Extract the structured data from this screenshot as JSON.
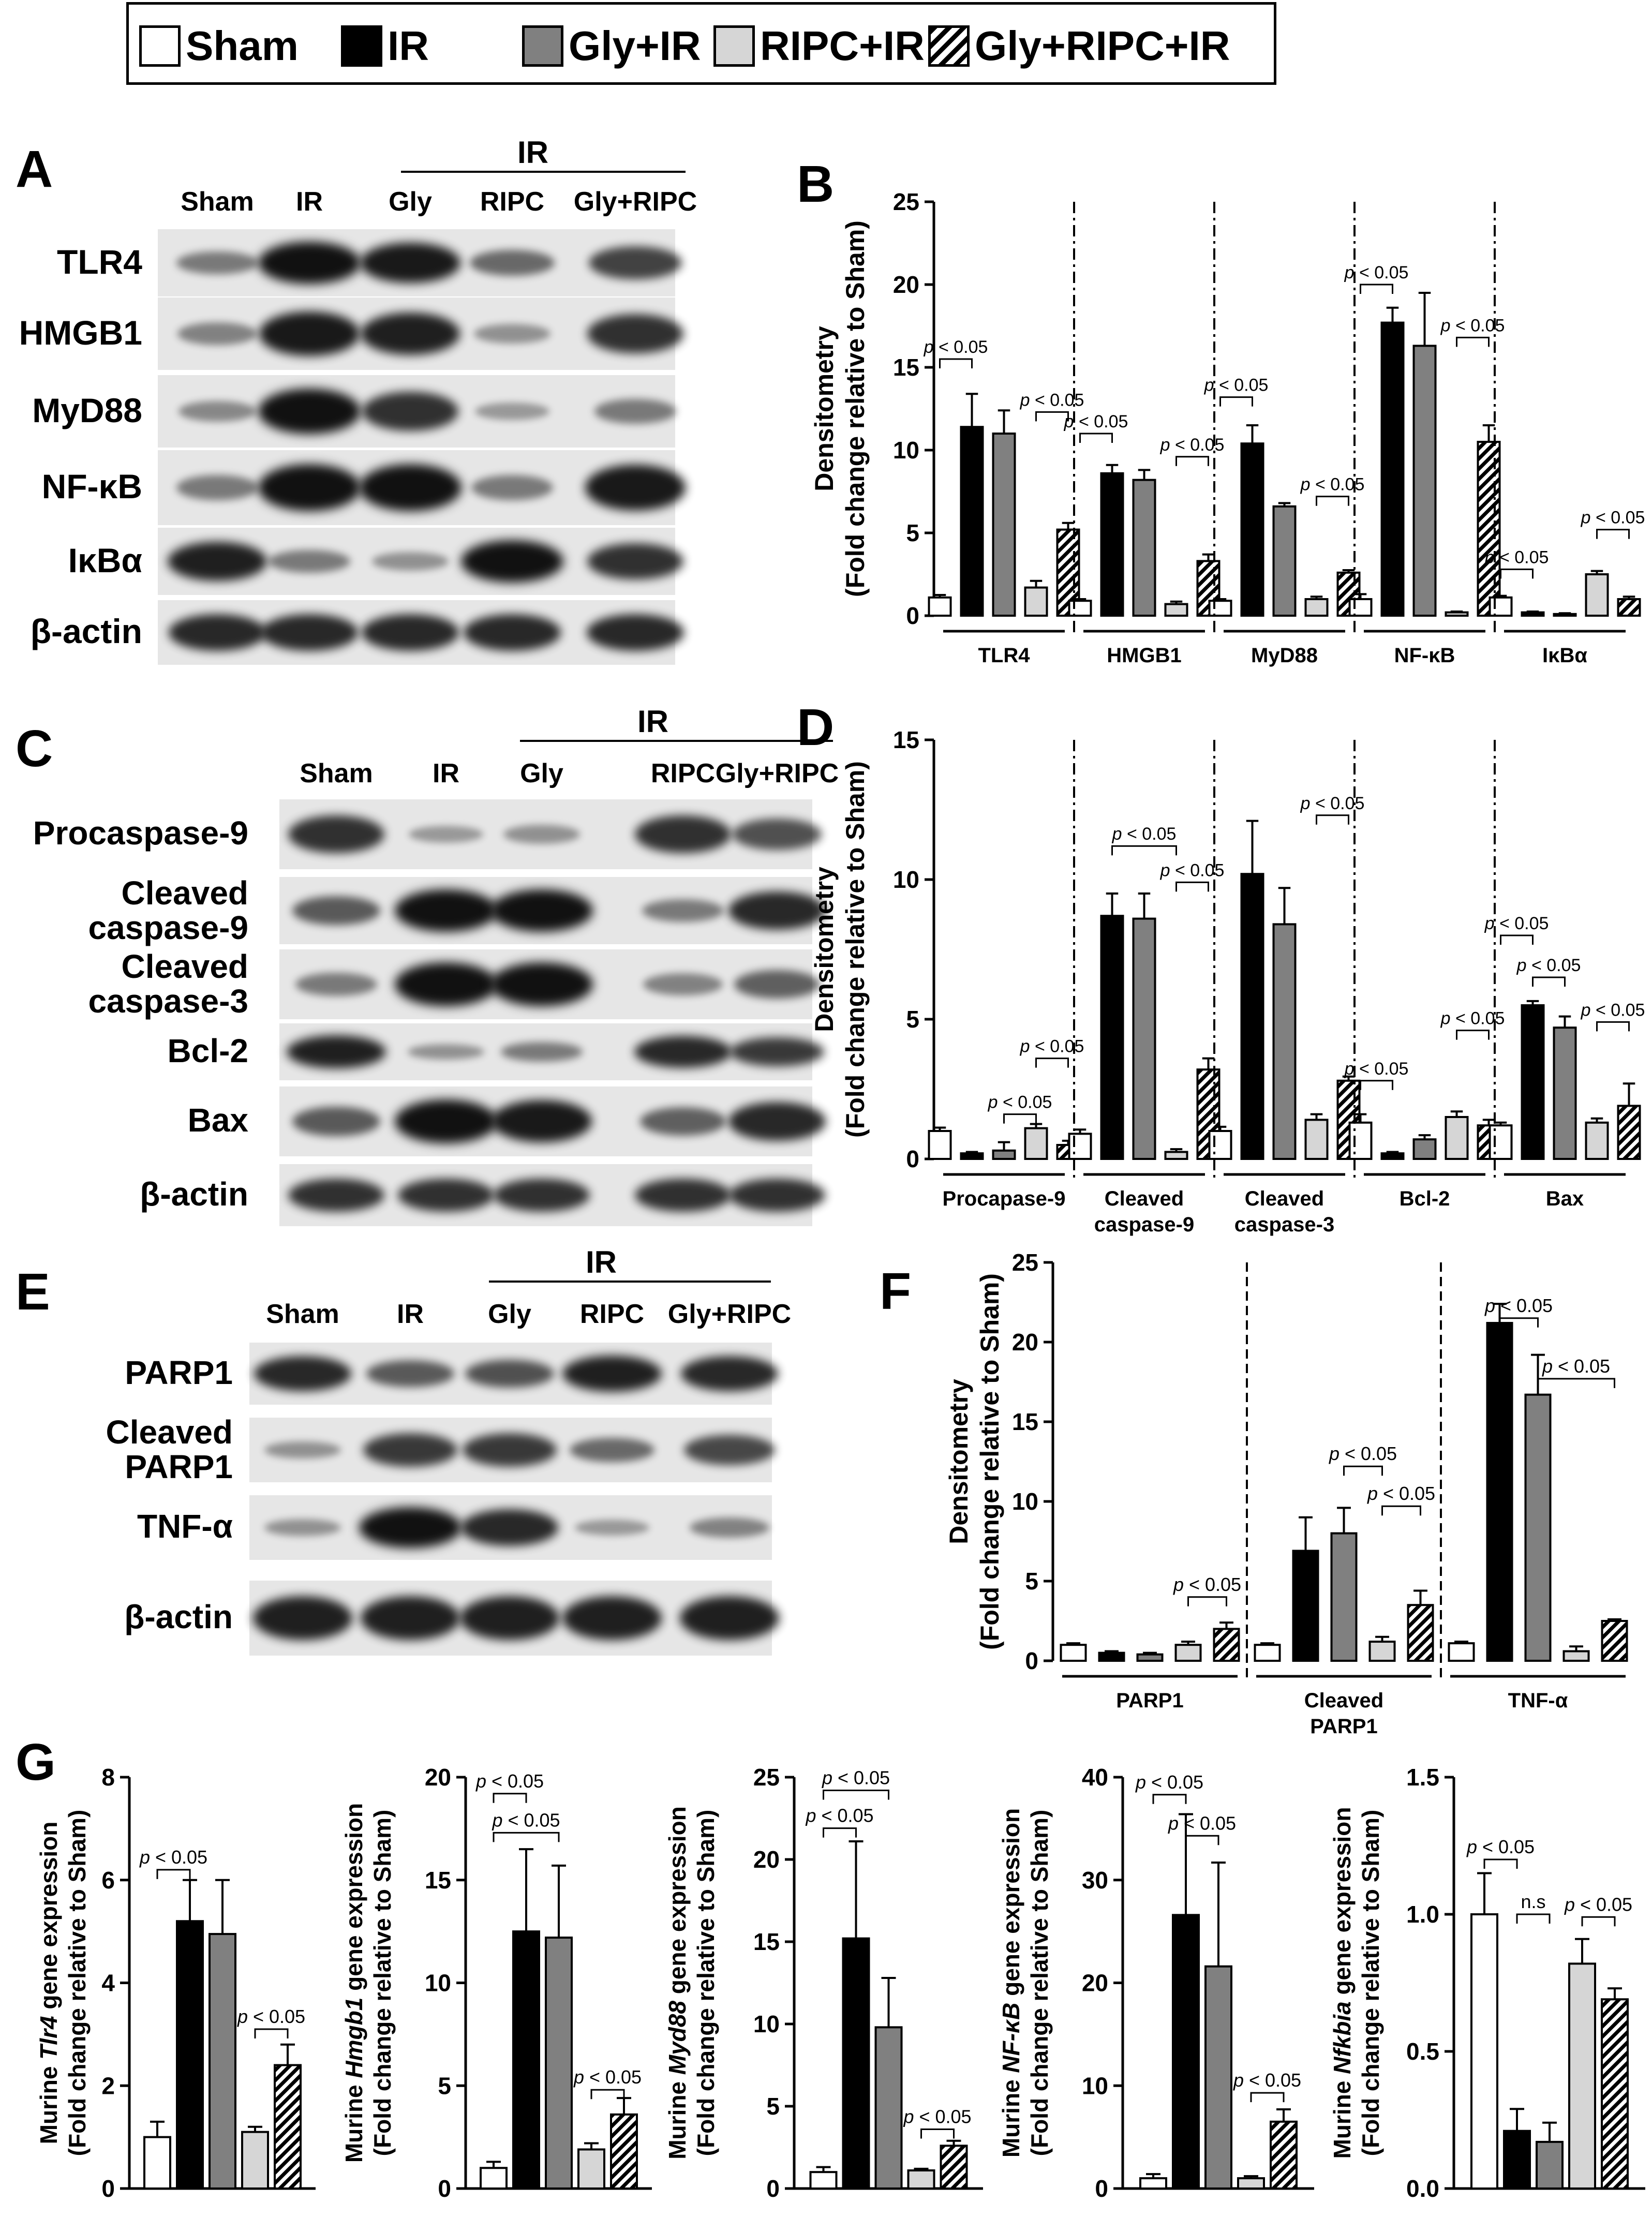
{
  "legend": {
    "items": [
      {
        "label": "Sham",
        "fill": "white"
      },
      {
        "label": "IR",
        "fill": "black"
      },
      {
        "label": "Gly+IR",
        "fill": "gray"
      },
      {
        "label": "RIPC+IR",
        "fill": "lightgray"
      },
      {
        "label": "Gly+RIPC+IR",
        "fill": "hatch"
      }
    ]
  },
  "colors": {
    "white": "#ffffff",
    "black": "#000000",
    "gray": "#808080",
    "lightgray": "#d6d6d6"
  },
  "blots": {
    "A": {
      "letter": "A",
      "group_label": "IR",
      "lanes": [
        "Sham",
        "IR",
        "Gly",
        "RIPC",
        "Gly+RIPC"
      ],
      "rows": [
        {
          "name": "TLR4",
          "intensity": [
            0.35,
            1.0,
            0.95,
            0.45,
            0.7
          ]
        },
        {
          "name": "HMGB1",
          "intensity": [
            0.3,
            0.95,
            0.9,
            0.2,
            0.8
          ]
        },
        {
          "name": "MyD88",
          "intensity": [
            0.25,
            1.0,
            0.8,
            0.15,
            0.35
          ]
        },
        {
          "name": "NF-κB",
          "intensity": [
            0.35,
            1.0,
            1.0,
            0.35,
            0.95
          ]
        },
        {
          "name": "IκBα",
          "intensity": [
            0.9,
            0.35,
            0.2,
            1.0,
            0.8
          ]
        },
        {
          "name": "β-actin",
          "intensity": [
            0.85,
            0.85,
            0.85,
            0.85,
            0.85
          ]
        }
      ]
    },
    "C": {
      "letter": "C",
      "group_label": "IR",
      "lanes": [
        "Sham",
        "IR",
        "Gly",
        "RIPC",
        "Gly+RIPC"
      ],
      "rows": [
        {
          "name": "Procaspase-9",
          "intensity": [
            0.8,
            0.15,
            0.2,
            0.8,
            0.6
          ]
        },
        {
          "name": "Cleaved caspase-9",
          "intensity": [
            0.55,
            1.0,
            1.0,
            0.35,
            0.85
          ]
        },
        {
          "name": "Cleaved caspase-3",
          "intensity": [
            0.35,
            1.0,
            1.0,
            0.3,
            0.5
          ]
        },
        {
          "name": "Bcl-2",
          "intensity": [
            0.9,
            0.2,
            0.35,
            0.85,
            0.75
          ]
        },
        {
          "name": "Bax",
          "intensity": [
            0.55,
            1.0,
            0.95,
            0.5,
            0.85
          ]
        },
        {
          "name": "β-actin",
          "intensity": [
            0.8,
            0.8,
            0.8,
            0.8,
            0.8
          ]
        }
      ]
    },
    "E": {
      "letter": "E",
      "group_label": "IR",
      "lanes": [
        "Sham",
        "IR",
        "Gly",
        "RIPC",
        "Gly+RIPC"
      ],
      "rows": [
        {
          "name": "PARP1",
          "intensity": [
            0.85,
            0.55,
            0.6,
            0.9,
            0.85
          ]
        },
        {
          "name": "Cleaved PARP1",
          "intensity": [
            0.2,
            0.75,
            0.75,
            0.45,
            0.65
          ]
        },
        {
          "name": "TNF-α",
          "intensity": [
            0.2,
            1.0,
            0.85,
            0.15,
            0.3
          ]
        },
        {
          "name": "β-actin",
          "intensity": [
            0.9,
            0.9,
            0.9,
            0.9,
            0.9
          ]
        }
      ]
    }
  },
  "chart_data": [
    {
      "id": "B",
      "letter": "B",
      "type": "bar",
      "ylabel": [
        "Densitometry",
        "(Fold change relative to Sham)"
      ],
      "ylim": [
        0,
        25
      ],
      "yticks": [
        0,
        5,
        10,
        15,
        20,
        25
      ],
      "separator": "dashdot",
      "groups": [
        {
          "label": [
            "TLR4"
          ],
          "values": [
            1.1,
            11.4,
            11.0,
            1.7,
            5.2
          ],
          "errors": [
            0.15,
            2.0,
            1.4,
            0.4,
            0.4
          ],
          "annotations": [
            {
              "from": 0,
              "to": 1,
              "y": 15.5,
              "text": "p < 0.05"
            },
            {
              "from": 3,
              "to": 4,
              "y": 12.3,
              "text": "p < 0.05"
            }
          ]
        },
        {
          "label": [
            "HMGB1"
          ],
          "values": [
            0.9,
            8.6,
            8.2,
            0.7,
            3.3
          ],
          "errors": [
            0.1,
            0.5,
            0.6,
            0.15,
            0.4
          ],
          "annotations": [
            {
              "from": 0,
              "to": 1,
              "y": 11.0,
              "text": "p < 0.05"
            },
            {
              "from": 3,
              "to": 4,
              "y": 9.6,
              "text": "p < 0.05"
            }
          ]
        },
        {
          "label": [
            "MyD88"
          ],
          "values": [
            0.9,
            10.4,
            6.6,
            1.0,
            2.6
          ],
          "errors": [
            0.1,
            1.1,
            0.2,
            0.15,
            0.15
          ],
          "annotations": [
            {
              "from": 0,
              "to": 1,
              "y": 13.2,
              "text": "p < 0.05"
            },
            {
              "from": 3,
              "to": 4,
              "y": 7.2,
              "text": "p < 0.05"
            }
          ]
        },
        {
          "label": [
            "NF-κB"
          ],
          "values": [
            1.0,
            17.7,
            16.3,
            0.2,
            10.5
          ],
          "errors": [
            0.3,
            0.9,
            3.2,
            0.05,
            1.0
          ],
          "annotations": [
            {
              "from": 0,
              "to": 1,
              "y": 20.0,
              "text": "p < 0.05"
            },
            {
              "from": 3,
              "to": 4,
              "y": 16.8,
              "text": "p < 0.05"
            }
          ]
        },
        {
          "label": [
            "IκBα"
          ],
          "values": [
            1.1,
            0.2,
            0.1,
            2.5,
            1.0
          ],
          "errors": [
            0.1,
            0.05,
            0.05,
            0.2,
            0.15
          ],
          "annotations": [
            {
              "from": 0,
              "to": 1,
              "y": 2.8,
              "text": "p < 0.05"
            },
            {
              "from": 3,
              "to": 4,
              "y": 5.2,
              "text": "p < 0.05"
            }
          ]
        }
      ]
    },
    {
      "id": "D",
      "letter": "D",
      "type": "bar",
      "ylabel": [
        "Densitometry",
        "(Fold change relative to Sham)"
      ],
      "ylim": [
        0,
        15
      ],
      "yticks": [
        0,
        5,
        10,
        15
      ],
      "separator": "dashdot",
      "groups": [
        {
          "label": [
            "Procapase-9"
          ],
          "values": [
            1.0,
            0.2,
            0.3,
            1.1,
            0.5
          ],
          "errors": [
            0.12,
            0.05,
            0.3,
            0.15,
            0.15
          ],
          "annotations": [
            {
              "from": 2,
              "to": 3,
              "y": 1.6,
              "text": "p < 0.05"
            },
            {
              "from": 3,
              "to": 4,
              "y": 3.6,
              "text": "p < 0.05"
            }
          ]
        },
        {
          "label": [
            "Cleaved",
            "caspase-9"
          ],
          "values": [
            0.9,
            8.7,
            8.6,
            0.25,
            3.2
          ],
          "errors": [
            0.15,
            0.8,
            0.9,
            0.1,
            0.4
          ],
          "annotations": [
            {
              "from": 1,
              "to": 3,
              "y": 11.2,
              "text": "p < 0.05"
            },
            {
              "from": 3,
              "to": 4,
              "y": 9.9,
              "text": "p < 0.05"
            }
          ]
        },
        {
          "label": [
            "Cleaved",
            "caspase-3"
          ],
          "values": [
            1.0,
            10.2,
            8.4,
            1.4,
            2.8
          ],
          "errors": [
            0.15,
            1.9,
            1.3,
            0.2,
            0.15
          ],
          "annotations": [
            {
              "from": 3,
              "to": 4,
              "y": 12.3,
              "text": "p < 0.05"
            }
          ]
        },
        {
          "label": [
            "Bcl-2"
          ],
          "values": [
            1.3,
            0.2,
            0.7,
            1.5,
            1.2
          ],
          "errors": [
            0.3,
            0.05,
            0.15,
            0.2,
            0.2
          ],
          "annotations": [
            {
              "from": 0,
              "to": 1,
              "y": 2.8,
              "text": "p < 0.05"
            },
            {
              "from": 3,
              "to": 4,
              "y": 4.6,
              "text": "p < 0.05"
            }
          ]
        },
        {
          "label": [
            "Bax"
          ],
          "values": [
            1.2,
            5.5,
            4.7,
            1.3,
            1.9
          ],
          "errors": [
            0.1,
            0.15,
            0.4,
            0.15,
            0.8
          ],
          "annotations": [
            {
              "from": 0,
              "to": 1,
              "y": 8.0,
              "text": "p < 0.05"
            },
            {
              "from": 1,
              "to": 2,
              "y": 6.5,
              "text": "p < 0.05"
            },
            {
              "from": 3,
              "to": 4,
              "y": 4.9,
              "text": "p < 0.05"
            }
          ]
        }
      ]
    },
    {
      "id": "F",
      "letter": "F",
      "type": "bar",
      "ylabel": [
        "Densitometry",
        "(Fold change relative to Sham)"
      ],
      "ylim": [
        0,
        25
      ],
      "yticks": [
        0,
        5,
        10,
        15,
        20,
        25
      ],
      "separator": "dash",
      "groups": [
        {
          "label": [
            "PARP1"
          ],
          "values": [
            1.0,
            0.5,
            0.4,
            1.0,
            2.0
          ],
          "errors": [
            0.1,
            0.1,
            0.1,
            0.2,
            0.4
          ],
          "annotations": [
            {
              "from": 3,
              "to": 4,
              "y": 4.0,
              "text": "p < 0.05"
            }
          ]
        },
        {
          "label": [
            "Cleaved",
            "PARP1"
          ],
          "values": [
            1.0,
            6.9,
            8.0,
            1.2,
            3.5
          ],
          "errors": [
            0.1,
            2.1,
            1.6,
            0.3,
            0.9
          ],
          "annotations": [
            {
              "from": 2,
              "to": 3,
              "y": 12.2,
              "text": "p < 0.05"
            },
            {
              "from": 3,
              "to": 4,
              "y": 9.7,
              "text": "p < 0.05"
            }
          ]
        },
        {
          "label": [
            "TNF-α"
          ],
          "values": [
            1.1,
            21.2,
            16.7,
            0.6,
            2.5
          ],
          "errors": [
            0.1,
            1.2,
            2.5,
            0.3,
            0.1
          ],
          "annotations": [
            {
              "from": 1,
              "to": 2,
              "y": 21.5,
              "text": "p < 0.05"
            },
            {
              "from": 2,
              "to": 4,
              "y": 17.7,
              "text": "p < 0.05"
            }
          ]
        }
      ]
    },
    {
      "id": "G1",
      "letter": "G",
      "type": "bar",
      "ylabel_prefix": "Murine ",
      "ylabel_gene": "Tlr4",
      "ylabel_suffix": " gene expression",
      "ylabel2": "(Fold change relative to Sham)",
      "ylim": [
        0,
        8
      ],
      "yticks": [
        0,
        2,
        4,
        6,
        8
      ],
      "values": [
        1.0,
        5.2,
        4.95,
        1.1,
        2.4
      ],
      "errors": [
        0.3,
        0.8,
        1.05,
        0.1,
        0.4
      ],
      "annotations": [
        {
          "from": 0,
          "to": 1,
          "y": 6.2,
          "text": "p < 0.05"
        },
        {
          "from": 3,
          "to": 4,
          "y": 3.1,
          "text": "p < 0.05"
        }
      ]
    },
    {
      "id": "G2",
      "type": "bar",
      "ylabel_prefix": "Murine ",
      "ylabel_gene": "Hmgb1",
      "ylabel_suffix": " gene expression",
      "ylabel2": "(Fold change relative to Sham)",
      "ylim": [
        0,
        20
      ],
      "yticks": [
        0,
        5,
        10,
        15,
        20
      ],
      "values": [
        1.0,
        12.5,
        12.2,
        1.9,
        3.6
      ],
      "errors": [
        0.3,
        4.0,
        3.5,
        0.3,
        0.8
      ],
      "annotations": [
        {
          "from": 0,
          "to": 1,
          "y": 19.2,
          "text": "p < 0.05"
        },
        {
          "from": 0,
          "to": 2,
          "y": 17.3,
          "text": "p < 0.05"
        },
        {
          "from": 3,
          "to": 4,
          "y": 4.8,
          "text": "p < 0.05"
        }
      ]
    },
    {
      "id": "G3",
      "type": "bar",
      "ylabel_prefix": "Murine ",
      "ylabel_gene": "Myd88",
      "ylabel_suffix": " gene expression",
      "ylabel2": "(Fold change relative to Sham)",
      "ylim": [
        0,
        25
      ],
      "yticks": [
        0,
        5,
        10,
        15,
        20,
        25
      ],
      "values": [
        1.0,
        15.2,
        9.8,
        1.1,
        2.6
      ],
      "errors": [
        0.3,
        5.9,
        3.0,
        0.1,
        0.3
      ],
      "annotations": [
        {
          "from": 0,
          "to": 2,
          "y": 24.2,
          "text": "p < 0.05"
        },
        {
          "from": 0,
          "to": 1,
          "y": 21.9,
          "text": "p < 0.05"
        },
        {
          "from": 3,
          "to": 4,
          "y": 3.6,
          "text": "p < 0.05"
        }
      ]
    },
    {
      "id": "G4",
      "type": "bar",
      "ylabel_prefix": "Murine ",
      "ylabel_gene": "NF-κB",
      "ylabel_suffix": " gene expression",
      "ylabel2": "(Fold change relative to Sham)",
      "ylim": [
        0,
        40
      ],
      "yticks": [
        0,
        10,
        20,
        30,
        40
      ],
      "values": [
        1.0,
        26.6,
        21.6,
        1.0,
        6.5
      ],
      "errors": [
        0.4,
        9.8,
        10.1,
        0.2,
        1.2
      ],
      "annotations": [
        {
          "from": 0,
          "to": 1,
          "y": 38.3,
          "text": "p < 0.05"
        },
        {
          "from": 1,
          "to": 2,
          "y": 34.3,
          "text": "p < 0.05"
        },
        {
          "from": 3,
          "to": 4,
          "y": 9.3,
          "text": "p < 0.05"
        }
      ]
    },
    {
      "id": "G5",
      "type": "bar",
      "ylabel_prefix": "Murine ",
      "ylabel_gene": "Nfkbia",
      "ylabel_suffix": " gene expression",
      "ylabel2": "(Fold change relative to Sham)",
      "ylim": [
        0,
        1.5
      ],
      "yticks": [
        "0.0",
        "0.5",
        "1.0",
        "1.5"
      ],
      "values": [
        1.0,
        0.21,
        0.17,
        0.82,
        0.69
      ],
      "errors": [
        0.15,
        0.08,
        0.07,
        0.09,
        0.04
      ],
      "annotations": [
        {
          "from": 0,
          "to": 1,
          "y": 1.2,
          "text": "p < 0.05"
        },
        {
          "from": 1,
          "to": 2,
          "y": 1.0,
          "text": "n.s"
        },
        {
          "from": 3,
          "to": 4,
          "y": 0.99,
          "text": "p < 0.05"
        }
      ]
    }
  ]
}
